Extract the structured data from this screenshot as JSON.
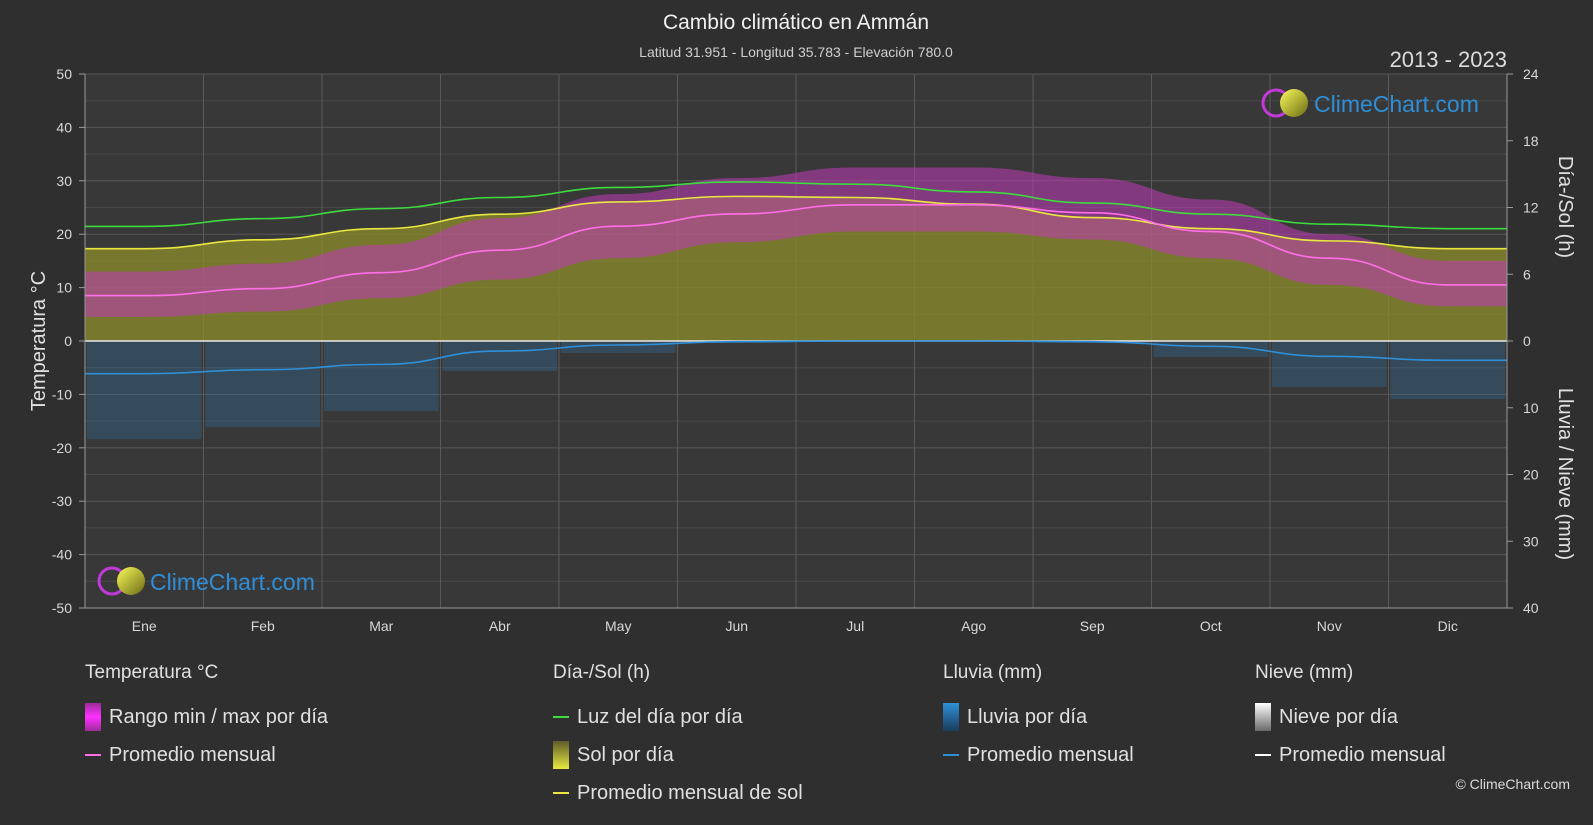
{
  "chart_data": {
    "type": "area",
    "title": "Cambio climático en Ammán",
    "subtitle": "Latitud 31.951 - Longitud 35.783 - Elevación 780.0",
    "period": "2013 - 2023",
    "brand": "ClimeChart.com",
    "copyright": "© ClimeChart.com",
    "ylabel_left": "Temperatura °C",
    "ylabel_right_top": "Día-/Sol (h)",
    "ylabel_right_bottom": "Lluvia / Nieve (mm)",
    "yticks_left": [
      "50",
      "40",
      "30",
      "20",
      "10",
      "0",
      "-10",
      "-20",
      "-30",
      "-40",
      "-50"
    ],
    "yticks_right_top": [
      "24",
      "18",
      "12",
      "6",
      "0"
    ],
    "yticks_right_bottom": [
      "10",
      "20",
      "30",
      "40"
    ],
    "ylim_left": [
      -50,
      50
    ],
    "ylim_right_top": [
      0,
      24
    ],
    "ylim_right_bottom": [
      0,
      40
    ],
    "categories": [
      "Ene",
      "Feb",
      "Mar",
      "Abr",
      "May",
      "Jun",
      "Jul",
      "Ago",
      "Sep",
      "Oct",
      "Nov",
      "Dic"
    ],
    "series": [
      {
        "name": "Luz del día por día",
        "unit": "h",
        "values": [
          10.3,
          11.0,
          11.9,
          12.9,
          13.8,
          14.3,
          14.1,
          13.4,
          12.4,
          11.4,
          10.5,
          10.1
        ]
      },
      {
        "name": "Promedio mensual de sol",
        "unit": "h",
        "values": [
          8.3,
          9.1,
          10.1,
          11.4,
          12.5,
          13.0,
          12.9,
          12.3,
          11.1,
          10.1,
          9.0,
          8.3
        ]
      },
      {
        "name": "Promedio mensual",
        "unit": "°C",
        "values": [
          8.5,
          9.8,
          12.8,
          17.0,
          21.5,
          23.8,
          25.5,
          25.5,
          24.0,
          20.5,
          15.5,
          10.5
        ]
      },
      {
        "name": "Temperatura máx. media",
        "unit": "°C",
        "values": [
          13.0,
          14.5,
          18.0,
          23.0,
          27.5,
          30.5,
          32.5,
          32.5,
          30.5,
          26.5,
          20.0,
          15.0
        ]
      },
      {
        "name": "Temperatura mín. media",
        "unit": "°C",
        "values": [
          4.5,
          5.5,
          8.0,
          11.5,
          15.5,
          18.5,
          20.5,
          20.5,
          19.0,
          15.5,
          10.5,
          6.5
        ]
      },
      {
        "name": "Lluvia promedio mensual",
        "unit": "mm",
        "values": [
          4.9,
          4.3,
          3.5,
          1.5,
          0.6,
          0.1,
          0.0,
          0.0,
          0.1,
          0.8,
          2.3,
          2.9
        ]
      }
    ],
    "legend": [
      {
        "title": "Temperatura °C",
        "items": [
          {
            "label": "Rango min / max por día",
            "swatch": "box",
            "color": "#e03be0"
          },
          {
            "label": "Promedio mensual",
            "swatch": "line",
            "color": "#ff6ee8"
          }
        ]
      },
      {
        "title": "Día-/Sol (h)",
        "items": [
          {
            "label": "Luz del día por día",
            "swatch": "line",
            "color": "#3ddc3d"
          },
          {
            "label": "Sol por día",
            "swatch": "box",
            "color": "#d6d62a"
          },
          {
            "label": "Promedio mensual de sol",
            "swatch": "line",
            "color": "#e8e840"
          }
        ]
      },
      {
        "title": "Lluvia (mm)",
        "items": [
          {
            "label": "Lluvia por día",
            "swatch": "box",
            "color": "#2e8fd8"
          },
          {
            "label": "Promedio mensual",
            "swatch": "line",
            "color": "#2e8fd8"
          }
        ]
      },
      {
        "title": "Nieve (mm)",
        "items": [
          {
            "label": "Nieve por día",
            "swatch": "box",
            "color": "#dcdcdc"
          },
          {
            "label": "Promedio mensual",
            "swatch": "line",
            "color": "#ffffff"
          }
        ]
      }
    ],
    "colors": {
      "background": "#2f2f2f",
      "plot_bg": "#383838",
      "grid": "#5a5a5a",
      "daylight": "#3ddc3d",
      "sun_avg": "#e8e840",
      "sun_fill": "#8c8c2a",
      "temp_avg": "#ff6ee8",
      "temp_range": "#c13ab8",
      "rain": "#2e8fd8",
      "brand": "#2e8fd8"
    },
    "grid": true
  }
}
